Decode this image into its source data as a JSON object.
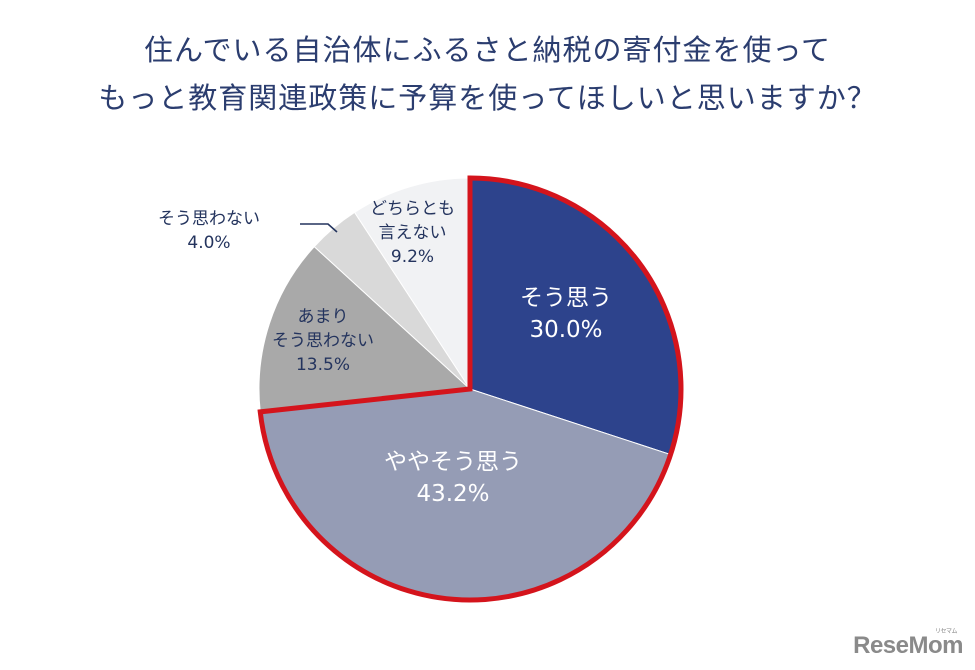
{
  "title": {
    "line1": "住んでいる自治体にふるさと納税の寄付金を使って",
    "line2": "もっと教育関連政策に予算を使ってほしいと思いますか？"
  },
  "labels": {
    "agree": {
      "name": "そう思う",
      "value": "30.0%"
    },
    "somewhat_agree": {
      "name": "ややそう思う",
      "value": "43.2%"
    },
    "somewhat_disagree": {
      "name1": "あまり",
      "name2": "そう思わない",
      "value": "13.5%"
    },
    "disagree": {
      "name": "そう思わない",
      "value": "4.0%"
    },
    "neutral": {
      "name1": "どちらとも",
      "name2": "言えない",
      "value": "9.2%"
    }
  },
  "logo": {
    "text": "ReseMom",
    "sub": "リセマム"
  },
  "colors": {
    "agree": "#2d438c",
    "somewhat_agree": "#959cb5",
    "somewhat_disagree": "#a9a9a9",
    "disagree": "#d9d9d9",
    "neutral": "#f1f2f4",
    "highlight": "#d4141c",
    "text_dark": "#24345e"
  },
  "chart_data": {
    "type": "pie",
    "title": "住んでいる自治体にふるさと納税の寄付金を使って もっと教育関連政策に予算を使ってほしいと思いますか？",
    "categories": [
      "そう思う",
      "ややそう思う",
      "あまりそう思わない",
      "そう思わない",
      "どちらとも言えない"
    ],
    "values": [
      30.0,
      43.2,
      13.5,
      4.0,
      9.2
    ],
    "unit": "%",
    "start_angle": "12 o'clock, clockwise",
    "highlighted": [
      "そう思う",
      "ややそう思う"
    ],
    "legend": "none (inline labels)"
  }
}
